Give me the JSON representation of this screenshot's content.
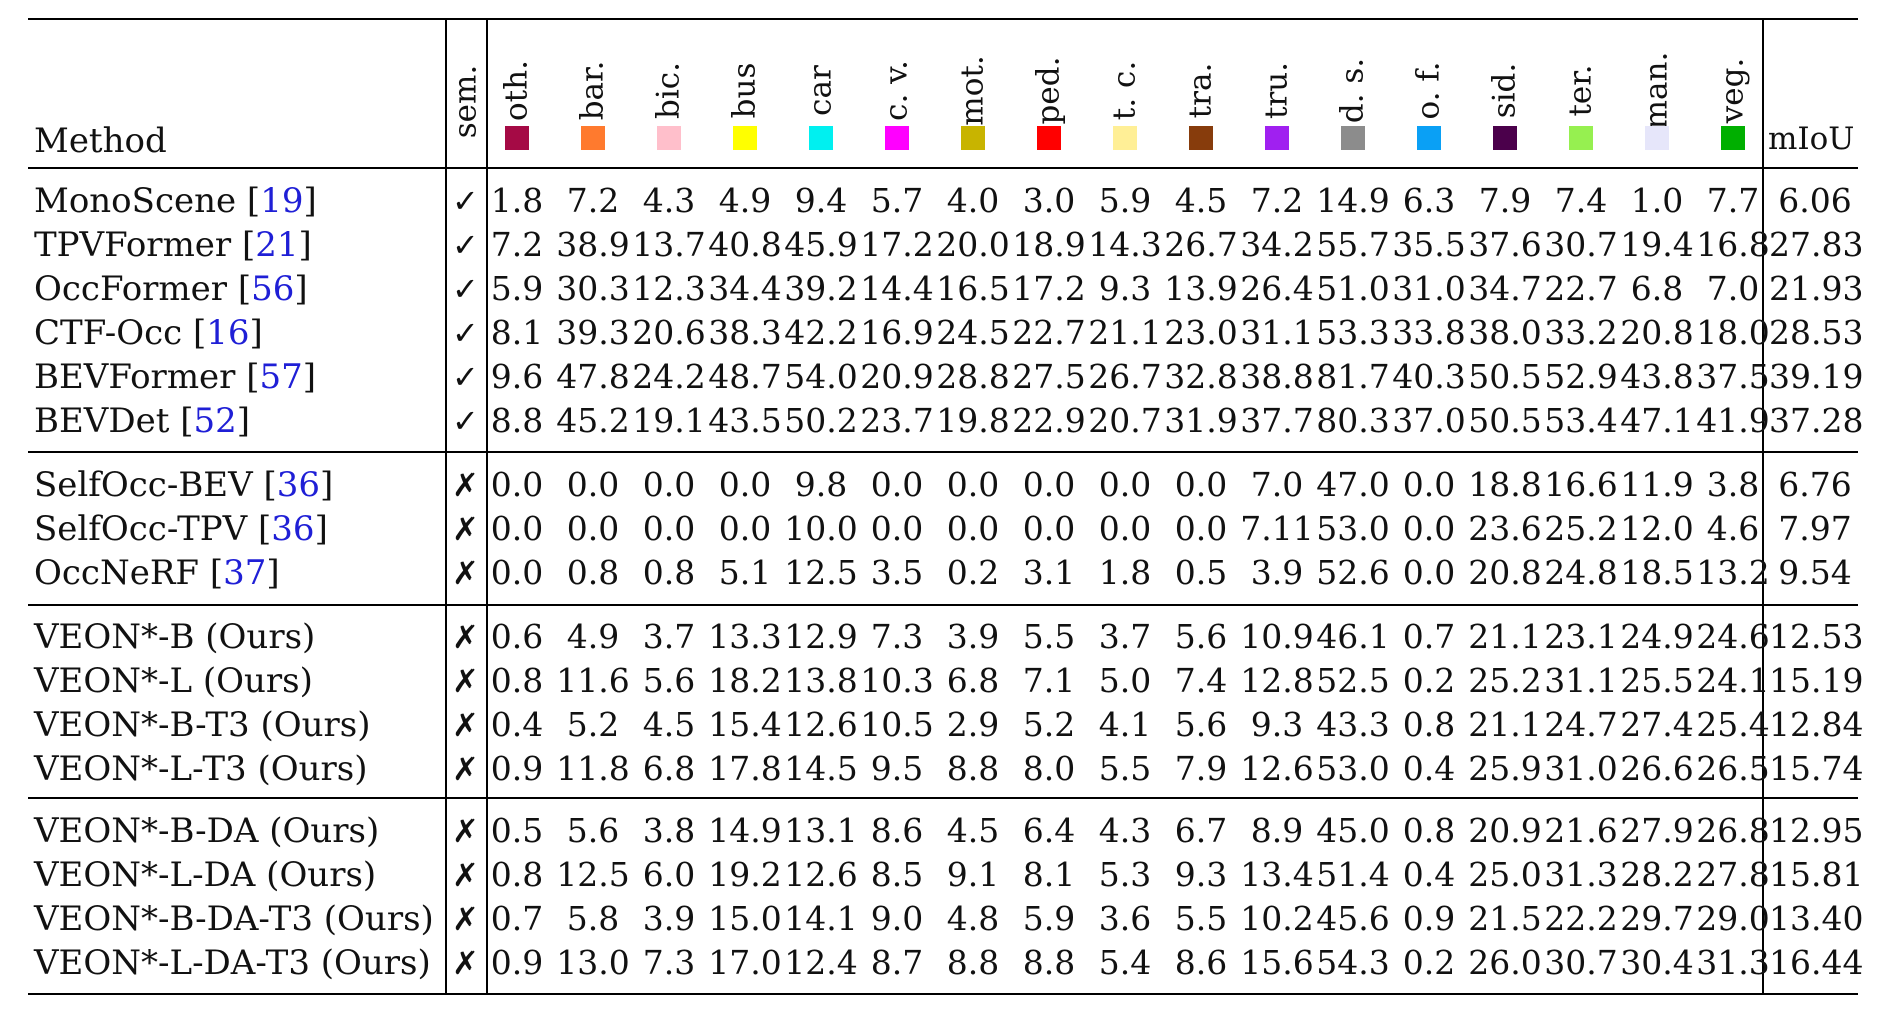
{
  "header": {
    "method_label": "Method",
    "sem_label": "sem.",
    "miou_label": "mIoU",
    "classes": [
      {
        "abbr": "oth.",
        "color": "#a50a45"
      },
      {
        "abbr": "bar.",
        "color": "#ff7a2e"
      },
      {
        "abbr": "bic.",
        "color": "#ffbfcb"
      },
      {
        "abbr": "bus",
        "color": "#ffff00"
      },
      {
        "abbr": "car",
        "color": "#00f0f0"
      },
      {
        "abbr": "c. v.",
        "color": "#ff00ff"
      },
      {
        "abbr": "mot.",
        "color": "#c8b400"
      },
      {
        "abbr": "ped.",
        "color": "#ff0000"
      },
      {
        "abbr": "t. c.",
        "color": "#ffef96"
      },
      {
        "abbr": "tra.",
        "color": "#873c0c"
      },
      {
        "abbr": "tru.",
        "color": "#a020f0"
      },
      {
        "abbr": "d. s.",
        "color": "#8c8c8c"
      },
      {
        "abbr": "o. f.",
        "color": "#0aa0f5"
      },
      {
        "abbr": "sid.",
        "color": "#4b004b"
      },
      {
        "abbr": "ter.",
        "color": "#96f050"
      },
      {
        "abbr": "man.",
        "color": "#e6e6fa"
      },
      {
        "abbr": "veg.",
        "color": "#00af00"
      }
    ]
  },
  "groups": [
    {
      "rows": [
        {
          "name": "MonoScene",
          "ref": "19",
          "sem": "✓",
          "values": [
            "1.8",
            "7.2",
            "4.3",
            "4.9",
            "9.4",
            "5.7",
            "4.0",
            "3.0",
            "5.9",
            "4.5",
            "7.2",
            "14.9",
            "6.3",
            "7.9",
            "7.4",
            "1.0",
            "7.7"
          ],
          "miou": "6.06"
        },
        {
          "name": "TPVFormer",
          "ref": "21",
          "sem": "✓",
          "values": [
            "7.2",
            "38.9",
            "13.7",
            "40.8",
            "45.9",
            "17.2",
            "20.0",
            "18.9",
            "14.3",
            "26.7",
            "34.2",
            "55.7",
            "35.5",
            "37.6",
            "30.7",
            "19.4",
            "16.8"
          ],
          "miou": "27.83"
        },
        {
          "name": "OccFormer",
          "ref": "56",
          "sem": "✓",
          "values": [
            "5.9",
            "30.3",
            "12.3",
            "34.4",
            "39.2",
            "14.4",
            "16.5",
            "17.2",
            "9.3",
            "13.9",
            "26.4",
            "51.0",
            "31.0",
            "34.7",
            "22.7",
            "6.8",
            "7.0"
          ],
          "miou": "21.93"
        },
        {
          "name": "CTF-Occ",
          "ref": "16",
          "sem": "✓",
          "values": [
            "8.1",
            "39.3",
            "20.6",
            "38.3",
            "42.2",
            "16.9",
            "24.5",
            "22.7",
            "21.1",
            "23.0",
            "31.1",
            "53.3",
            "33.8",
            "38.0",
            "33.2",
            "20.8",
            "18.0"
          ],
          "miou": "28.53"
        },
        {
          "name": "BEVFormer",
          "ref": "57",
          "sem": "✓",
          "values": [
            "9.6",
            "47.8",
            "24.2",
            "48.7",
            "54.0",
            "20.9",
            "28.8",
            "27.5",
            "26.7",
            "32.8",
            "38.8",
            "81.7",
            "40.3",
            "50.5",
            "52.9",
            "43.8",
            "37.5"
          ],
          "miou": "39.19"
        },
        {
          "name": "BEVDet",
          "ref": "52",
          "sem": "✓",
          "values": [
            "8.8",
            "45.2",
            "19.1",
            "43.5",
            "50.2",
            "23.7",
            "19.8",
            "22.9",
            "20.7",
            "31.9",
            "37.7",
            "80.3",
            "37.0",
            "50.5",
            "53.4",
            "47.1",
            "41.9"
          ],
          "miou": "37.28"
        }
      ]
    },
    {
      "rows": [
        {
          "name": "SelfOcc-BEV",
          "ref": "36",
          "sem": "✗",
          "values": [
            "0.0",
            "0.0",
            "0.0",
            "0.0",
            "9.8",
            "0.0",
            "0.0",
            "0.0",
            "0.0",
            "0.0",
            "7.0",
            "47.0",
            "0.0",
            "18.8",
            "16.6",
            "11.9",
            "3.8"
          ],
          "miou": "6.76"
        },
        {
          "name": "SelfOcc-TPV",
          "ref": "36",
          "sem": "✗",
          "values": [
            "0.0",
            "0.0",
            "0.0",
            "0.0",
            "10.0",
            "0.0",
            "0.0",
            "0.0",
            "0.0",
            "0.0",
            "7.11",
            "53.0",
            "0.0",
            "23.6",
            "25.2",
            "12.0",
            "4.6"
          ],
          "miou": "7.97"
        },
        {
          "name": "OccNeRF",
          "ref": "37",
          "sem": "✗",
          "values": [
            "0.0",
            "0.8",
            "0.8",
            "5.1",
            "12.5",
            "3.5",
            "0.2",
            "3.1",
            "1.8",
            "0.5",
            "3.9",
            "52.6",
            "0.0",
            "20.8",
            "24.8",
            "18.5",
            "13.2"
          ],
          "miou": "9.54"
        }
      ]
    },
    {
      "rows": [
        {
          "name": "VEON*-B (Ours)",
          "ref": "",
          "sem": "✗",
          "values": [
            "0.6",
            "4.9",
            "3.7",
            "13.3",
            "12.9",
            "7.3",
            "3.9",
            "5.5",
            "3.7",
            "5.6",
            "10.9",
            "46.1",
            "0.7",
            "21.1",
            "23.1",
            "24.9",
            "24.6"
          ],
          "miou": "12.53"
        },
        {
          "name": "VEON*-L (Ours)",
          "ref": "",
          "sem": "✗",
          "values": [
            "0.8",
            "11.6",
            "5.6",
            "18.2",
            "13.8",
            "10.3",
            "6.8",
            "7.1",
            "5.0",
            "7.4",
            "12.8",
            "52.5",
            "0.2",
            "25.2",
            "31.1",
            "25.5",
            "24.1"
          ],
          "miou": "15.19"
        },
        {
          "name": "VEON*-B-T3 (Ours)",
          "ref": "",
          "sem": "✗",
          "values": [
            "0.4",
            "5.2",
            "4.5",
            "15.4",
            "12.6",
            "10.5",
            "2.9",
            "5.2",
            "4.1",
            "5.6",
            "9.3",
            "43.3",
            "0.8",
            "21.1",
            "24.7",
            "27.4",
            "25.4"
          ],
          "miou": "12.84"
        },
        {
          "name": "VEON*-L-T3 (Ours)",
          "ref": "",
          "sem": "✗",
          "values": [
            "0.9",
            "11.8",
            "6.8",
            "17.8",
            "14.5",
            "9.5",
            "8.8",
            "8.0",
            "5.5",
            "7.9",
            "12.6",
            "53.0",
            "0.4",
            "25.9",
            "31.0",
            "26.6",
            "26.5"
          ],
          "miou": "15.74"
        }
      ]
    },
    {
      "rows": [
        {
          "name": "VEON*-B-DA (Ours)",
          "ref": "",
          "sem": "✗",
          "values": [
            "0.5",
            "5.6",
            "3.8",
            "14.9",
            "13.1",
            "8.6",
            "4.5",
            "6.4",
            "4.3",
            "6.7",
            "8.9",
            "45.0",
            "0.8",
            "20.9",
            "21.6",
            "27.9",
            "26.8"
          ],
          "miou": "12.95"
        },
        {
          "name": "VEON*-L-DA (Ours)",
          "ref": "",
          "sem": "✗",
          "values": [
            "0.8",
            "12.5",
            "6.0",
            "19.2",
            "12.6",
            "8.5",
            "9.1",
            "8.1",
            "5.3",
            "9.3",
            "13.4",
            "51.4",
            "0.4",
            "25.0",
            "31.3",
            "28.2",
            "27.8"
          ],
          "miou": "15.81"
        },
        {
          "name": "VEON*-B-DA-T3 (Ours)",
          "ref": "",
          "sem": "✗",
          "values": [
            "0.7",
            "5.8",
            "3.9",
            "15.0",
            "14.1",
            "9.0",
            "4.8",
            "5.9",
            "3.6",
            "5.5",
            "10.2",
            "45.6",
            "0.9",
            "21.5",
            "22.2",
            "29.7",
            "29.0"
          ],
          "miou": "13.40"
        },
        {
          "name": "VEON*-L-DA-T3 (Ours)",
          "ref": "",
          "sem": "✗",
          "values": [
            "0.9",
            "13.0",
            "7.3",
            "17.0",
            "12.4",
            "8.7",
            "8.8",
            "8.8",
            "5.4",
            "8.6",
            "15.6",
            "54.3",
            "0.2",
            "26.0",
            "30.7",
            "30.4",
            "31.3"
          ],
          "miou": "16.44"
        }
      ]
    }
  ]
}
